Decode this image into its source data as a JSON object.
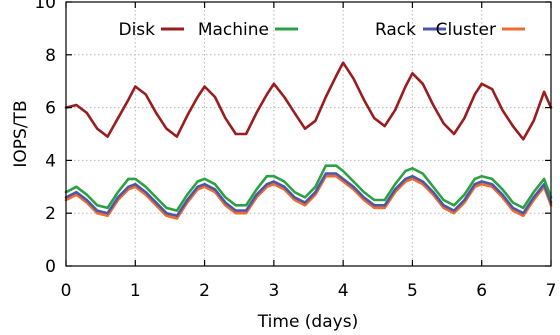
{
  "chart_data": {
    "type": "line",
    "xlabel": "Time (days)",
    "ylabel": "IOPS/TB",
    "xlim": [
      0,
      7
    ],
    "ylim": [
      0,
      10
    ],
    "xticks": [
      "0",
      "1",
      "2",
      "3",
      "4",
      "5",
      "6",
      "7"
    ],
    "yticks": [
      "0",
      "2",
      "4",
      "6",
      "8",
      "10"
    ],
    "grid": true,
    "legend_position": "top",
    "series": [
      {
        "name": "Disk",
        "color": "#9b1c1f",
        "x": [
          0,
          0.15,
          0.3,
          0.45,
          0.6,
          0.75,
          0.9,
          1.0,
          1.15,
          1.3,
          1.45,
          1.6,
          1.75,
          1.9,
          2.0,
          2.15,
          2.3,
          2.45,
          2.6,
          2.75,
          2.9,
          3.0,
          3.15,
          3.3,
          3.45,
          3.6,
          3.75,
          3.9,
          4.0,
          4.15,
          4.3,
          4.45,
          4.6,
          4.75,
          4.9,
          5.0,
          5.15,
          5.3,
          5.45,
          5.6,
          5.75,
          5.9,
          6.0,
          6.15,
          6.3,
          6.45,
          6.6,
          6.75,
          6.9,
          7.0
        ],
        "y": [
          6.0,
          6.1,
          5.8,
          5.2,
          4.9,
          5.6,
          6.3,
          6.8,
          6.5,
          5.8,
          5.2,
          4.9,
          5.7,
          6.4,
          6.8,
          6.4,
          5.6,
          5.0,
          5.0,
          5.8,
          6.5,
          6.9,
          6.4,
          5.8,
          5.2,
          5.5,
          6.4,
          7.2,
          7.7,
          7.1,
          6.3,
          5.6,
          5.3,
          5.9,
          6.8,
          7.3,
          6.9,
          6.1,
          5.4,
          5.0,
          5.6,
          6.5,
          6.9,
          6.7,
          5.9,
          5.3,
          4.8,
          5.5,
          6.6,
          6.0
        ]
      },
      {
        "name": "Machine",
        "color": "#2ca043",
        "x": [
          0,
          0.15,
          0.3,
          0.45,
          0.6,
          0.75,
          0.9,
          1.0,
          1.15,
          1.3,
          1.45,
          1.6,
          1.75,
          1.9,
          2.0,
          2.15,
          2.3,
          2.45,
          2.6,
          2.75,
          2.9,
          3.0,
          3.15,
          3.3,
          3.45,
          3.6,
          3.75,
          3.9,
          4.0,
          4.15,
          4.3,
          4.45,
          4.6,
          4.75,
          4.9,
          5.0,
          5.15,
          5.3,
          5.45,
          5.6,
          5.75,
          5.9,
          6.0,
          6.15,
          6.3,
          6.45,
          6.6,
          6.75,
          6.9,
          7.0
        ],
        "y": [
          2.8,
          3.0,
          2.7,
          2.3,
          2.2,
          2.8,
          3.3,
          3.3,
          3.0,
          2.6,
          2.2,
          2.1,
          2.7,
          3.2,
          3.3,
          3.1,
          2.6,
          2.3,
          2.3,
          2.9,
          3.4,
          3.4,
          3.2,
          2.8,
          2.6,
          3.0,
          3.8,
          3.8,
          3.6,
          3.2,
          2.8,
          2.5,
          2.5,
          3.1,
          3.6,
          3.7,
          3.5,
          3.0,
          2.5,
          2.3,
          2.7,
          3.3,
          3.4,
          3.3,
          2.9,
          2.4,
          2.2,
          2.8,
          3.3,
          2.6
        ]
      },
      {
        "name": "Rack",
        "color": "#4a58a8",
        "x": [
          0,
          0.15,
          0.3,
          0.45,
          0.6,
          0.75,
          0.9,
          1.0,
          1.15,
          1.3,
          1.45,
          1.6,
          1.75,
          1.9,
          2.0,
          2.15,
          2.3,
          2.45,
          2.6,
          2.75,
          2.9,
          3.0,
          3.15,
          3.3,
          3.45,
          3.6,
          3.75,
          3.9,
          4.0,
          4.15,
          4.3,
          4.45,
          4.6,
          4.75,
          4.9,
          5.0,
          5.15,
          5.3,
          5.45,
          5.6,
          5.75,
          5.9,
          6.0,
          6.15,
          6.3,
          6.45,
          6.6,
          6.75,
          6.9,
          7.0
        ],
        "y": [
          2.6,
          2.8,
          2.5,
          2.1,
          2.0,
          2.6,
          3.0,
          3.1,
          2.8,
          2.4,
          2.0,
          1.9,
          2.5,
          3.0,
          3.1,
          2.9,
          2.4,
          2.1,
          2.1,
          2.7,
          3.1,
          3.2,
          3.0,
          2.6,
          2.4,
          2.8,
          3.5,
          3.5,
          3.3,
          3.0,
          2.6,
          2.3,
          2.3,
          2.9,
          3.3,
          3.4,
          3.2,
          2.8,
          2.3,
          2.1,
          2.5,
          3.1,
          3.2,
          3.1,
          2.7,
          2.2,
          2.0,
          2.6,
          3.1,
          2.4
        ]
      },
      {
        "name": "Cluster",
        "color": "#f26a2e",
        "x": [
          0,
          0.15,
          0.3,
          0.45,
          0.6,
          0.75,
          0.9,
          1.0,
          1.15,
          1.3,
          1.45,
          1.6,
          1.75,
          1.9,
          2.0,
          2.15,
          2.3,
          2.45,
          2.6,
          2.75,
          2.9,
          3.0,
          3.15,
          3.3,
          3.45,
          3.6,
          3.75,
          3.9,
          4.0,
          4.15,
          4.3,
          4.45,
          4.6,
          4.75,
          4.9,
          5.0,
          5.15,
          5.3,
          5.45,
          5.6,
          5.75,
          5.9,
          6.0,
          6.15,
          6.3,
          6.45,
          6.6,
          6.75,
          6.9,
          7.0
        ],
        "y": [
          2.5,
          2.7,
          2.4,
          2.0,
          1.9,
          2.5,
          2.9,
          3.0,
          2.7,
          2.3,
          1.9,
          1.8,
          2.4,
          2.9,
          3.0,
          2.8,
          2.3,
          2.0,
          2.0,
          2.6,
          3.0,
          3.1,
          2.9,
          2.5,
          2.3,
          2.7,
          3.4,
          3.4,
          3.2,
          2.9,
          2.5,
          2.2,
          2.2,
          2.8,
          3.2,
          3.3,
          3.1,
          2.7,
          2.2,
          2.0,
          2.4,
          3.0,
          3.1,
          3.0,
          2.6,
          2.1,
          1.9,
          2.5,
          3.0,
          2.3
        ]
      }
    ]
  }
}
